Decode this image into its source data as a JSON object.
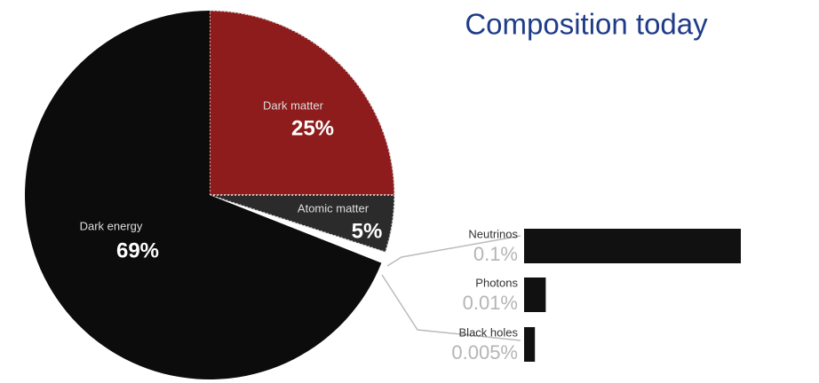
{
  "chart_data": [
    {
      "type": "pie",
      "title": "Composition today",
      "categories": [
        "Dark matter",
        "Atomic matter",
        "Dark energy"
      ],
      "values": [
        25,
        5,
        69
      ],
      "value_labels": [
        "25%",
        "5%",
        "69%"
      ],
      "colors": [
        "#8e1c1c",
        "#2b2b2b",
        "#0c0c0c"
      ]
    },
    {
      "type": "bar",
      "categories": [
        "Neutrinos",
        "Photons",
        "Black holes"
      ],
      "values": [
        0.1,
        0.01,
        0.005
      ],
      "value_labels": [
        "0.1%",
        "0.01%",
        "0.005%"
      ],
      "color": "#111111"
    }
  ]
}
